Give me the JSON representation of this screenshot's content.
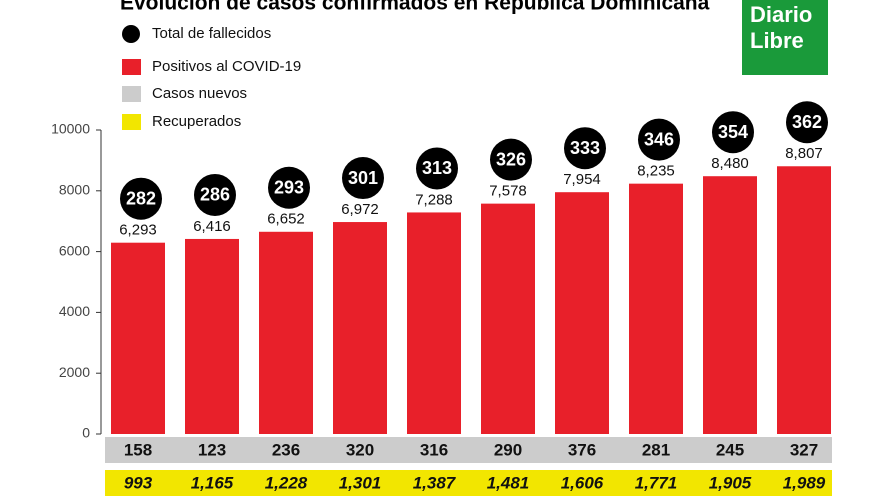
{
  "chart_data": {
    "type": "bar",
    "title": "Evolución de casos confirmados en República Dominicana",
    "logo": [
      "Diario",
      "Libre"
    ],
    "ylim": [
      0,
      10000
    ],
    "yticks": [
      0,
      2000,
      4000,
      6000,
      8000,
      10000
    ],
    "series": [
      {
        "name": "Total de fallecidos",
        "color": "#000000",
        "values": [
          282,
          286,
          293,
          301,
          313,
          326,
          333,
          346,
          354,
          362
        ]
      },
      {
        "name": "Positivos al COVID-19",
        "color": "#e8202a",
        "values": [
          6293,
          6416,
          6652,
          6972,
          7288,
          7578,
          7954,
          8235,
          8480,
          8807
        ],
        "value_labels": [
          "6,293",
          "6,416",
          "6,652",
          "6,972",
          "7,288",
          "7,578",
          "7,954",
          "8,235",
          "8,480",
          "8,807"
        ]
      },
      {
        "name": "Casos nuevos",
        "color": "#cccccc",
        "values": [
          158,
          123,
          236,
          320,
          316,
          290,
          376,
          281,
          245,
          327
        ]
      },
      {
        "name": "Recuperados",
        "color": "#f2e600",
        "values": [
          993,
          1165,
          1228,
          1301,
          1387,
          1481,
          1606,
          1771,
          1905,
          1989
        ],
        "value_labels": [
          "993",
          "1,165",
          "1,228",
          "1,301",
          "1,387",
          "1,481",
          "1,606",
          "1,771",
          "1,905",
          "1,989"
        ]
      }
    ]
  }
}
